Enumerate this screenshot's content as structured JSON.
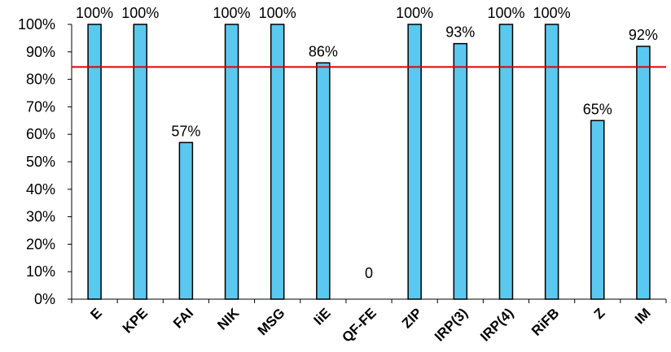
{
  "chart_data": {
    "type": "bar",
    "categories": [
      "E",
      "KPE",
      "FAI",
      "NIK",
      "MSG",
      "IiE",
      "QF-FE",
      "ZIP",
      "IRP(3)",
      "IRP(4)",
      "RiFB",
      "Z",
      "IM"
    ],
    "values": [
      100,
      100,
      57,
      100,
      100,
      86,
      0,
      100,
      93,
      100,
      100,
      65,
      92
    ],
    "data_labels": [
      "100%",
      "100%",
      "57%",
      "100%",
      "100%",
      "86%",
      "0",
      "100%",
      "93%",
      "100%",
      "100%",
      "65%",
      "92%"
    ],
    "ylim": [
      0,
      100
    ],
    "y_ticks": [
      "0%",
      "10%",
      "20%",
      "30%",
      "40%",
      "50%",
      "60%",
      "70%",
      "80%",
      "90%",
      "100%"
    ],
    "reference_line": 84.5,
    "grid": false,
    "legend": "none",
    "colors": {
      "bar_fill": "#5BC8F0",
      "bar_stroke": "#000000",
      "reference_line": "#E00000",
      "axis": "#000000"
    }
  }
}
